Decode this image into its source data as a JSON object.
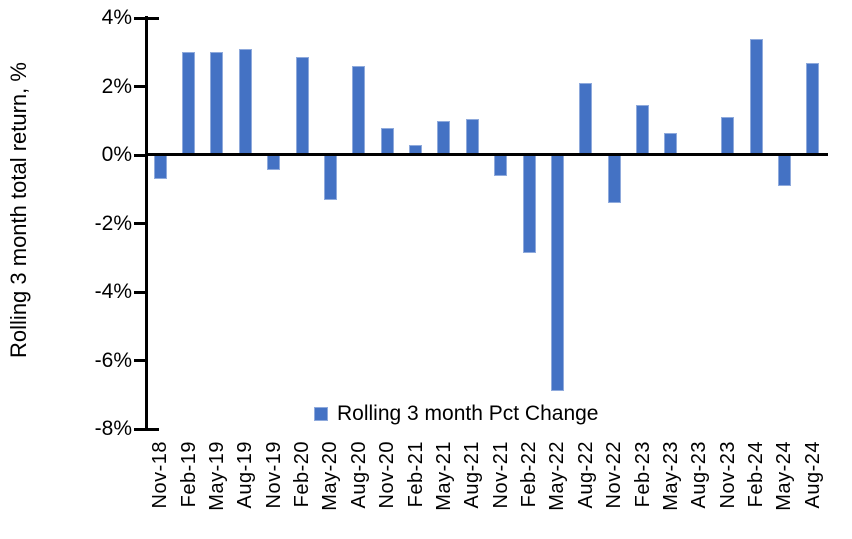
{
  "chart_data": {
    "type": "bar",
    "title": "",
    "xlabel": "",
    "ylabel": "Rolling 3 month total return, %",
    "legend_position": "bottom-center-inside-plot",
    "grid": false,
    "ylim": [
      -8,
      4
    ],
    "ytick_step": 2,
    "ytick_suffix": "%",
    "bar_color": "#4472C4",
    "bar_border_color": "#8FAADC",
    "axis_color": "#000000",
    "categories": [
      "Nov-18",
      "Feb-19",
      "May-19",
      "Aug-19",
      "Nov-19",
      "Feb-20",
      "May-20",
      "Aug-20",
      "Nov-20",
      "Feb-21",
      "May-21",
      "Aug-21",
      "Nov-21",
      "Feb-22",
      "May-22",
      "Aug-22",
      "Nov-22",
      "Feb-23",
      "May-23",
      "Aug-23",
      "Nov-23",
      "Feb-24",
      "May-24",
      "Aug-24"
    ],
    "series": [
      {
        "name": "Rolling 3 month Pct Change",
        "values": [
          -0.7,
          3.0,
          3.0,
          3.1,
          -0.45,
          2.85,
          -1.3,
          2.6,
          0.8,
          0.3,
          1.0,
          1.05,
          -0.6,
          -2.85,
          -6.9,
          2.1,
          -1.4,
          1.45,
          0.65,
          0.0,
          1.1,
          3.4,
          -0.9,
          2.7
        ]
      }
    ]
  }
}
